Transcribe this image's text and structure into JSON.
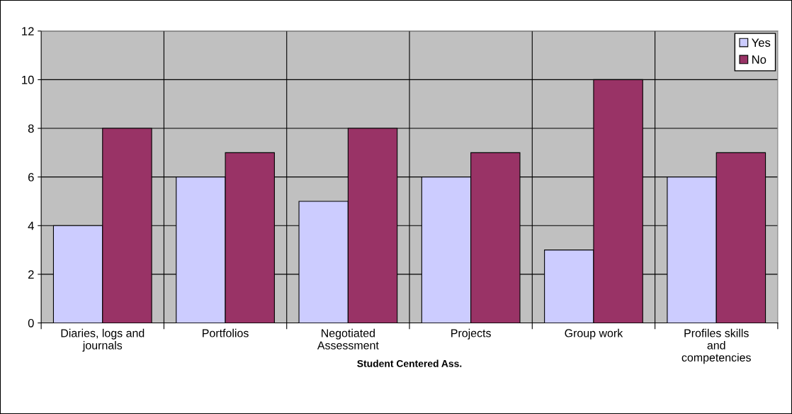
{
  "chart_data": {
    "type": "bar",
    "xlabel": "Student Centered Ass.",
    "categories": [
      "Diaries, logs and\njournals",
      "Portfolios",
      "Negotiated\nAssessment",
      "Projects",
      "Group work",
      "Profiles skills\nand\ncompetencies"
    ],
    "series": [
      {
        "name": "Yes",
        "color": "#ccccff",
        "values": [
          4,
          6,
          5,
          6,
          3,
          6
        ]
      },
      {
        "name": "No",
        "color": "#993366",
        "values": [
          8,
          7,
          8,
          7,
          10,
          7
        ]
      }
    ],
    "ylim": [
      0,
      12
    ],
    "yticks": [
      0,
      2,
      4,
      6,
      8,
      10,
      12
    ],
    "grid": true,
    "legend": "top right"
  }
}
